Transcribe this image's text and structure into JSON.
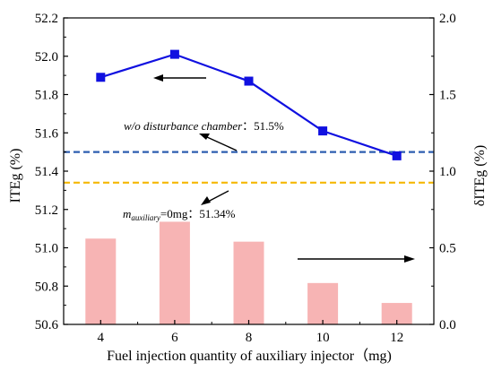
{
  "chart_data": {
    "type": "bar+line",
    "xlabel": "Fuel injection quantity of auxiliary injector（mg)",
    "ylabel_left": "ITEg (%)",
    "ylabel_right": "δITEg (%)",
    "categories": [
      "4",
      "6",
      "8",
      "10",
      "12"
    ],
    "x": [
      4,
      6,
      8,
      10,
      12
    ],
    "xlim": [
      3,
      13
    ],
    "ylim_left": [
      50.6,
      52.2
    ],
    "yticks_left": [
      "50.6",
      "50.8",
      "51.0",
      "51.2",
      "51.4",
      "51.6",
      "51.8",
      "52.0",
      "52.2"
    ],
    "ylim_right": [
      0.0,
      2.0
    ],
    "yticks_right": [
      "0.0",
      "0.5",
      "1.0",
      "1.5",
      "2.0"
    ],
    "line_series": {
      "axis": "left",
      "color": "#1010e0",
      "values": [
        51.89,
        52.01,
        51.87,
        51.61,
        51.48
      ]
    },
    "bar_series": {
      "axis": "right",
      "color": "#f7b4b4",
      "values": [
        0.56,
        0.67,
        0.54,
        0.27,
        0.14
      ]
    },
    "reference_lines": [
      {
        "axis": "left",
        "value": 51.5,
        "color": "#2e5fb0",
        "style": "dashed"
      },
      {
        "axis": "left",
        "value": 51.34,
        "color": "#f5b800",
        "style": "dashed"
      }
    ],
    "annotations": {
      "ref1_label": "w/o disturbance chamber",
      "ref1_value": "：51.5%",
      "ref2_m": "m",
      "ref2_sub": "auxiliary",
      "ref2_rest": "=0mg：51.34%"
    }
  }
}
